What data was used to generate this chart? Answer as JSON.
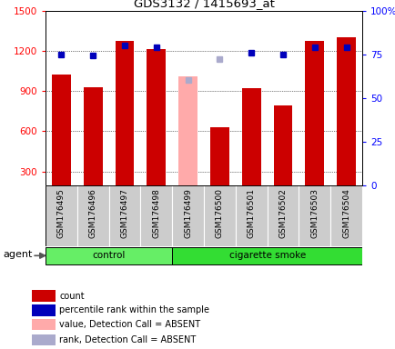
{
  "title": "GDS3132 / 1415693_at",
  "samples": [
    "GSM176495",
    "GSM176496",
    "GSM176497",
    "GSM176498",
    "GSM176499",
    "GSM176500",
    "GSM176501",
    "GSM176502",
    "GSM176503",
    "GSM176504"
  ],
  "counts": [
    1020,
    930,
    1270,
    1210,
    null,
    630,
    920,
    790,
    1270,
    1300
  ],
  "percentile_ranks": [
    75,
    74,
    80,
    79,
    null,
    null,
    76,
    75,
    79,
    79
  ],
  "absent_value": [
    null,
    null,
    null,
    null,
    1010,
    630,
    null,
    null,
    null,
    null
  ],
  "absent_rank": [
    null,
    null,
    null,
    null,
    60,
    72,
    null,
    null,
    null,
    null
  ],
  "groups": [
    "control",
    "control",
    "control",
    "control",
    "cigarette smoke",
    "cigarette smoke",
    "cigarette smoke",
    "cigarette smoke",
    "cigarette smoke",
    "cigarette smoke"
  ],
  "group_colors": {
    "control": "#66ee66",
    "cigarette smoke": "#33dd33"
  },
  "ylim_left": [
    200,
    1500
  ],
  "ylim_right": [
    0,
    100
  ],
  "right_ticks": [
    0,
    25,
    50,
    75,
    100
  ],
  "right_tick_labels": [
    "0",
    "25",
    "50",
    "75",
    "100%"
  ],
  "left_ticks": [
    300,
    600,
    900,
    1200,
    1500
  ],
  "bar_color_present": "#cc0000",
  "bar_color_absent_val": "#ffaaaa",
  "dot_color_present": "#0000bb",
  "dot_color_absent": "#aaaacc",
  "agent_label": "agent",
  "legend_items": [
    {
      "color": "#cc0000",
      "label": "count"
    },
    {
      "color": "#0000bb",
      "label": "percentile rank within the sample"
    },
    {
      "color": "#ffaaaa",
      "label": "value, Detection Call = ABSENT"
    },
    {
      "color": "#aaaacc",
      "label": "rank, Detection Call = ABSENT"
    }
  ]
}
